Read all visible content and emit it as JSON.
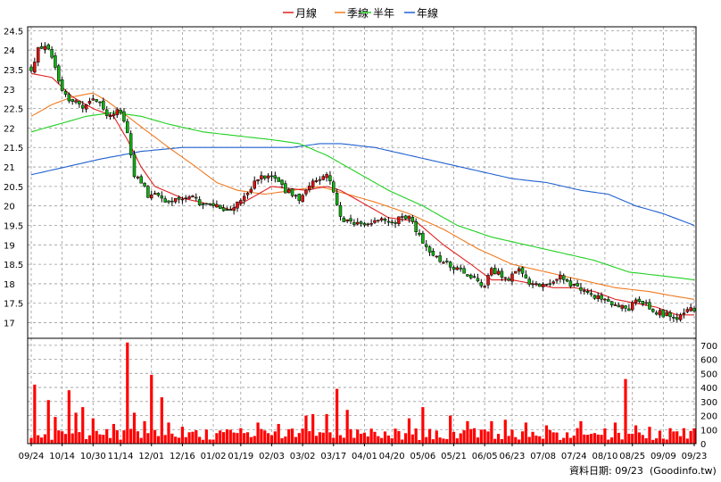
{
  "chart_data": {
    "type": "candlestick+volume",
    "legend": [
      {
        "label": "月線",
        "color": "#e02020"
      },
      {
        "label": "季線",
        "color": "#f07a20"
      },
      {
        "label": "半年",
        "color": "#20d020"
      },
      {
        "label": "年線",
        "color": "#2060d0"
      }
    ],
    "price_axis": {
      "ylim": [
        16.6,
        24.6
      ],
      "ticks": [
        "17",
        "17.5",
        "18",
        "18.5",
        "19",
        "19.5",
        "20",
        "20.5",
        "21",
        "21.5",
        "22",
        "22.5",
        "23",
        "23.5",
        "24",
        "24.5"
      ]
    },
    "volume_axis": {
      "ylim": [
        0,
        750
      ],
      "ticks": [
        "0",
        "100",
        "200",
        "300",
        "400",
        "500",
        "600",
        "700"
      ]
    },
    "date_ticks": [
      "09/24",
      "10/14",
      "10/30",
      "11/14",
      "12/01",
      "12/16",
      "01/02",
      "01/19",
      "02/03",
      "03/02",
      "03/17",
      "04/01",
      "04/20",
      "05/06",
      "05/21",
      "06/05",
      "06/23",
      "07/08",
      "07/24",
      "08/10",
      "08/25",
      "09/09",
      "09/23"
    ],
    "price_anchors": [
      {
        "d": 0,
        "p": 23.5
      },
      {
        "d": 2,
        "p": 24.0
      },
      {
        "d": 4,
        "p": 24.1
      },
      {
        "d": 6,
        "p": 23.8
      },
      {
        "d": 9,
        "p": 22.9
      },
      {
        "d": 12,
        "p": 22.7
      },
      {
        "d": 15,
        "p": 22.6
      },
      {
        "d": 18,
        "p": 22.8
      },
      {
        "d": 22,
        "p": 22.4
      },
      {
        "d": 26,
        "p": 22.4
      },
      {
        "d": 28,
        "p": 21.9
      },
      {
        "d": 30,
        "p": 20.8
      },
      {
        "d": 34,
        "p": 20.3
      },
      {
        "d": 40,
        "p": 20.1
      },
      {
        "d": 46,
        "p": 20.2
      },
      {
        "d": 52,
        "p": 20.0
      },
      {
        "d": 58,
        "p": 19.9
      },
      {
        "d": 62,
        "p": 20.2
      },
      {
        "d": 66,
        "p": 20.7
      },
      {
        "d": 70,
        "p": 20.8
      },
      {
        "d": 74,
        "p": 20.4
      },
      {
        "d": 78,
        "p": 20.2
      },
      {
        "d": 82,
        "p": 20.6
      },
      {
        "d": 86,
        "p": 20.8
      },
      {
        "d": 88,
        "p": 20.4
      },
      {
        "d": 90,
        "p": 19.7
      },
      {
        "d": 94,
        "p": 19.5
      },
      {
        "d": 100,
        "p": 19.6
      },
      {
        "d": 106,
        "p": 19.6
      },
      {
        "d": 110,
        "p": 19.8
      },
      {
        "d": 114,
        "p": 19.0
      },
      {
        "d": 118,
        "p": 18.7
      },
      {
        "d": 124,
        "p": 18.4
      },
      {
        "d": 128,
        "p": 18.2
      },
      {
        "d": 132,
        "p": 17.9
      },
      {
        "d": 134,
        "p": 18.4
      },
      {
        "d": 138,
        "p": 18.1
      },
      {
        "d": 142,
        "p": 18.3
      },
      {
        "d": 146,
        "p": 18.0
      },
      {
        "d": 150,
        "p": 17.9
      },
      {
        "d": 154,
        "p": 18.2
      },
      {
        "d": 158,
        "p": 17.9
      },
      {
        "d": 162,
        "p": 17.8
      },
      {
        "d": 166,
        "p": 17.6
      },
      {
        "d": 170,
        "p": 17.5
      },
      {
        "d": 174,
        "p": 17.3
      },
      {
        "d": 176,
        "p": 17.6
      },
      {
        "d": 180,
        "p": 17.4
      },
      {
        "d": 184,
        "p": 17.2
      },
      {
        "d": 188,
        "p": 17.1
      },
      {
        "d": 191,
        "p": 17.3
      },
      {
        "d": 193,
        "p": 17.3
      }
    ],
    "ma_anchors": {
      "month": [
        [
          0,
          23.4
        ],
        [
          6,
          23.3
        ],
        [
          12,
          22.8
        ],
        [
          18,
          22.5
        ],
        [
          24,
          22.3
        ],
        [
          28,
          21.7
        ],
        [
          32,
          21.0
        ],
        [
          36,
          20.5
        ],
        [
          44,
          20.2
        ],
        [
          54,
          20.0
        ],
        [
          58,
          19.9
        ],
        [
          62,
          20.1
        ],
        [
          70,
          20.5
        ],
        [
          80,
          20.4
        ],
        [
          86,
          20.5
        ],
        [
          90,
          20.4
        ],
        [
          96,
          20.1
        ],
        [
          104,
          19.7
        ],
        [
          112,
          19.6
        ],
        [
          120,
          19.0
        ],
        [
          128,
          18.5
        ],
        [
          134,
          18.1
        ],
        [
          140,
          18.1
        ],
        [
          146,
          18.0
        ],
        [
          152,
          17.9
        ],
        [
          158,
          17.9
        ],
        [
          164,
          17.8
        ],
        [
          170,
          17.6
        ],
        [
          176,
          17.5
        ],
        [
          182,
          17.4
        ],
        [
          188,
          17.2
        ],
        [
          193,
          17.2
        ]
      ],
      "quarter": [
        [
          0,
          22.3
        ],
        [
          6,
          22.6
        ],
        [
          12,
          22.8
        ],
        [
          18,
          22.9
        ],
        [
          22,
          22.7
        ],
        [
          28,
          22.3
        ],
        [
          34,
          21.9
        ],
        [
          40,
          21.5
        ],
        [
          48,
          21.0
        ],
        [
          54,
          20.6
        ],
        [
          60,
          20.4
        ],
        [
          68,
          20.3
        ],
        [
          76,
          20.4
        ],
        [
          84,
          20.5
        ],
        [
          92,
          20.3
        ],
        [
          100,
          20.1
        ],
        [
          110,
          19.8
        ],
        [
          120,
          19.4
        ],
        [
          130,
          18.9
        ],
        [
          140,
          18.5
        ],
        [
          150,
          18.3
        ],
        [
          160,
          18.1
        ],
        [
          170,
          17.9
        ],
        [
          180,
          17.8
        ],
        [
          186,
          17.7
        ],
        [
          193,
          17.6
        ]
      ],
      "half": [
        [
          0,
          21.9
        ],
        [
          8,
          22.1
        ],
        [
          16,
          22.3
        ],
        [
          24,
          22.4
        ],
        [
          32,
          22.3
        ],
        [
          40,
          22.1
        ],
        [
          50,
          21.9
        ],
        [
          60,
          21.8
        ],
        [
          70,
          21.7
        ],
        [
          78,
          21.6
        ],
        [
          86,
          21.3
        ],
        [
          94,
          20.9
        ],
        [
          104,
          20.4
        ],
        [
          114,
          20.0
        ],
        [
          124,
          19.5
        ],
        [
          134,
          19.2
        ],
        [
          144,
          19.0
        ],
        [
          154,
          18.8
        ],
        [
          164,
          18.6
        ],
        [
          174,
          18.3
        ],
        [
          184,
          18.2
        ],
        [
          193,
          18.1
        ]
      ],
      "year": [
        [
          0,
          20.8
        ],
        [
          10,
          21.0
        ],
        [
          20,
          21.2
        ],
        [
          32,
          21.4
        ],
        [
          44,
          21.5
        ],
        [
          56,
          21.5
        ],
        [
          66,
          21.5
        ],
        [
          76,
          21.5
        ],
        [
          84,
          21.6
        ],
        [
          90,
          21.6
        ],
        [
          100,
          21.5
        ],
        [
          110,
          21.3
        ],
        [
          120,
          21.1
        ],
        [
          130,
          20.9
        ],
        [
          140,
          20.7
        ],
        [
          150,
          20.6
        ],
        [
          160,
          20.4
        ],
        [
          168,
          20.3
        ],
        [
          176,
          20.0
        ],
        [
          184,
          19.8
        ],
        [
          193,
          19.5
        ]
      ]
    },
    "volume_spikes": [
      {
        "d": 1,
        "v": 420
      },
      {
        "d": 5,
        "v": 310
      },
      {
        "d": 7,
        "v": 190
      },
      {
        "d": 11,
        "v": 380
      },
      {
        "d": 13,
        "v": 220
      },
      {
        "d": 15,
        "v": 260
      },
      {
        "d": 18,
        "v": 180
      },
      {
        "d": 24,
        "v": 140
      },
      {
        "d": 28,
        "v": 720
      },
      {
        "d": 30,
        "v": 220
      },
      {
        "d": 33,
        "v": 160
      },
      {
        "d": 35,
        "v": 490
      },
      {
        "d": 38,
        "v": 330
      },
      {
        "d": 40,
        "v": 150
      },
      {
        "d": 44,
        "v": 120
      },
      {
        "d": 61,
        "v": 110
      },
      {
        "d": 66,
        "v": 150
      },
      {
        "d": 72,
        "v": 140
      },
      {
        "d": 80,
        "v": 200
      },
      {
        "d": 82,
        "v": 210
      },
      {
        "d": 86,
        "v": 210
      },
      {
        "d": 89,
        "v": 390
      },
      {
        "d": 92,
        "v": 240
      },
      {
        "d": 110,
        "v": 180
      },
      {
        "d": 114,
        "v": 260
      },
      {
        "d": 122,
        "v": 200
      },
      {
        "d": 127,
        "v": 160
      },
      {
        "d": 134,
        "v": 160
      },
      {
        "d": 138,
        "v": 170
      },
      {
        "d": 144,
        "v": 150
      },
      {
        "d": 150,
        "v": 130
      },
      {
        "d": 160,
        "v": 160
      },
      {
        "d": 170,
        "v": 150
      },
      {
        "d": 173,
        "v": 460
      },
      {
        "d": 176,
        "v": 130
      },
      {
        "d": 180,
        "v": 120
      },
      {
        "d": 186,
        "v": 110
      },
      {
        "d": 190,
        "v": 110
      }
    ],
    "total_days": 194
  },
  "footer": {
    "date_label": "資料日期: 09/23",
    "source_label": "(Goodinfo.tw)"
  }
}
